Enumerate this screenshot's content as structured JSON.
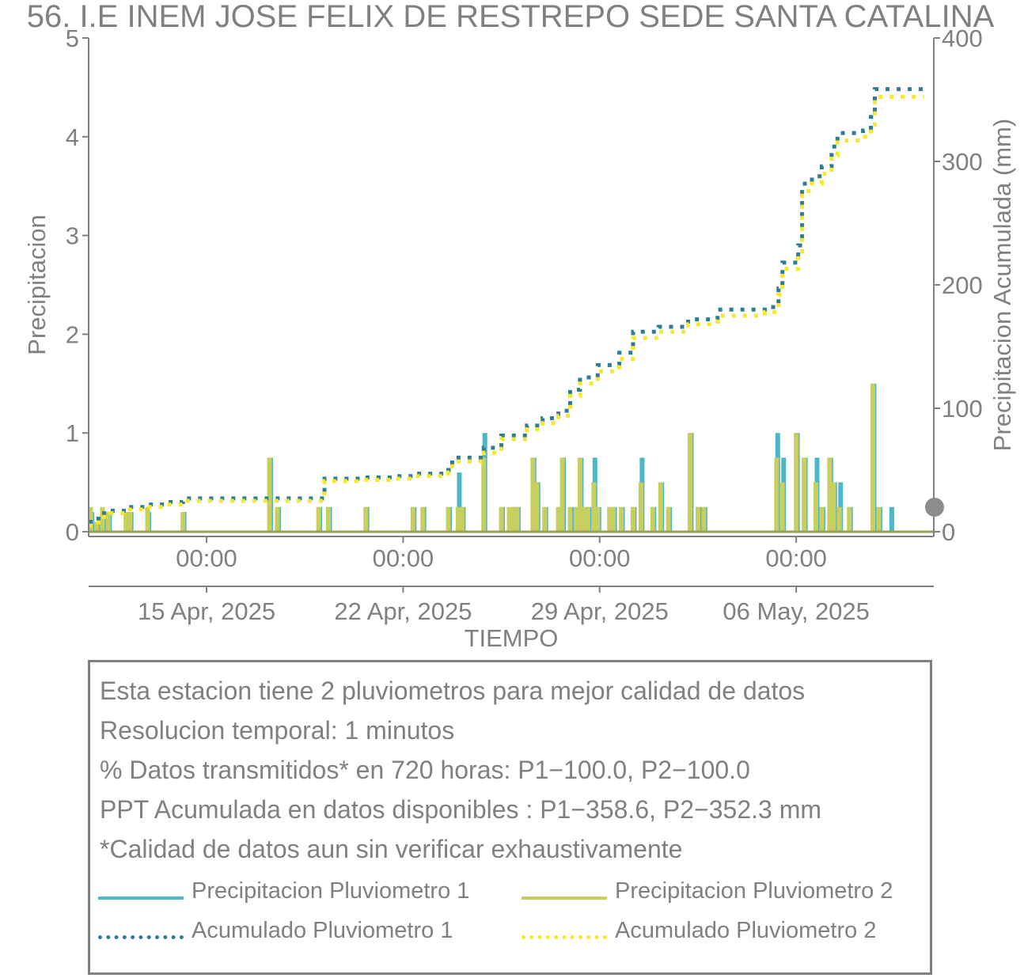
{
  "chart_data": {
    "type": "bar",
    "title": "56. I.E INEM JOSE FELIX DE RESTREPO SEDE SANTA CATALINA",
    "xlabel": "TIEMPO",
    "ylabel": "Precipitacion",
    "ylabel_right": "Precipitacion Acumulada (mm)",
    "ylim": [
      0,
      5
    ],
    "ylim_right": [
      0,
      400
    ],
    "yticks": [
      "0",
      "1",
      "2",
      "3",
      "4",
      "5"
    ],
    "yticks_right": [
      "0",
      "100",
      "200",
      "300",
      "400"
    ],
    "x_range_days": [
      10.5,
      53.5
    ],
    "xticks_time": [
      {
        "day": 16.5,
        "label": "00:00"
      },
      {
        "day": 26.5,
        "label": "00:00"
      },
      {
        "day": 36.5,
        "label": "00:00"
      },
      {
        "day": 46.5,
        "label": "00:00"
      }
    ],
    "xticks_date": [
      {
        "day": 16.5,
        "label": "15 Apr, 2025"
      },
      {
        "day": 26.5,
        "label": "22 Apr, 2025"
      },
      {
        "day": 36.5,
        "label": "29 Apr, 2025"
      },
      {
        "day": 46.5,
        "label": "06 May, 2025"
      }
    ],
    "colors": {
      "p1": "#4bb8c8",
      "p2": "#c8cf5f",
      "a1": "#2e7d96",
      "a2": "#f7e92a"
    },
    "series": [
      {
        "name": "Precipitacion Pluviometro 1",
        "kind": "bar",
        "x": [
          10.6,
          10.9,
          11.2,
          11.5,
          12.4,
          12.6,
          13.5,
          15.3,
          19.7,
          20.1,
          22.2,
          22.7,
          24.6,
          27.0,
          27.5,
          28.8,
          29.3,
          29.5,
          30.6,
          31.5,
          31.9,
          32.1,
          32.3,
          33.1,
          33.3,
          33.7,
          34.4,
          34.6,
          35.0,
          35.3,
          35.5,
          35.7,
          35.9,
          36.2,
          36.4,
          37.0,
          37.2,
          37.6,
          38.2,
          38.6,
          39.2,
          39.6,
          40.0,
          41.1,
          41.5,
          41.8,
          45.5,
          45.8,
          46.5,
          46.9,
          47.5,
          47.8,
          48.2,
          48.4,
          48.7,
          49.2,
          50.4,
          50.7,
          51.3
        ],
        "values": [
          0.2,
          0.1,
          0.2,
          0.2,
          0.2,
          0.2,
          0.2,
          0.2,
          0.75,
          0.25,
          0.25,
          0.25,
          0.25,
          0.25,
          0.25,
          0.25,
          0.6,
          0.25,
          1.0,
          0.25,
          0.2,
          0.25,
          0.25,
          0.75,
          0.5,
          0.25,
          0.25,
          0.75,
          0.25,
          0.25,
          0.75,
          0.25,
          0.25,
          0.75,
          0.25,
          0.25,
          0.25,
          0.25,
          0.25,
          0.75,
          0.25,
          0.5,
          0.25,
          1.0,
          0.25,
          0.25,
          1.0,
          0.75,
          1.0,
          0.75,
          0.75,
          0.25,
          0.75,
          0.5,
          0.5,
          0.25,
          1.5,
          0.25,
          0.25
        ]
      },
      {
        "name": "Precipitacion Pluviometro 2",
        "kind": "bar",
        "x": [
          10.6,
          10.9,
          11.2,
          11.5,
          12.4,
          12.6,
          13.5,
          15.3,
          19.7,
          20.1,
          22.2,
          22.7,
          24.6,
          27.0,
          27.5,
          28.8,
          29.3,
          29.5,
          30.6,
          31.5,
          31.9,
          32.1,
          32.3,
          33.1,
          33.3,
          33.7,
          34.4,
          34.6,
          35.0,
          35.3,
          35.5,
          35.7,
          35.9,
          36.2,
          36.4,
          37.0,
          37.2,
          37.6,
          38.2,
          38.6,
          39.2,
          39.6,
          40.0,
          41.1,
          41.5,
          41.8,
          45.5,
          45.8,
          46.5,
          46.9,
          47.5,
          47.8,
          48.2,
          48.4,
          48.7,
          49.2,
          50.4,
          50.7,
          51.3
        ],
        "values": [
          0.25,
          0.1,
          0.25,
          0.2,
          0.2,
          0.2,
          0.25,
          0.2,
          0.75,
          0.25,
          0.25,
          0.25,
          0.25,
          0.25,
          0.25,
          0.25,
          0.25,
          0.25,
          0.75,
          0.25,
          0.25,
          0.25,
          0.25,
          0.75,
          0.5,
          0.25,
          0.25,
          0.75,
          0.25,
          0.25,
          0.75,
          0.25,
          0.25,
          0.5,
          0.25,
          0.25,
          0.25,
          0.25,
          0.25,
          0.5,
          0.25,
          0.5,
          0.25,
          1.0,
          0.25,
          0.25,
          0.75,
          0.5,
          1.0,
          0.75,
          0.5,
          0.25,
          0.75,
          0.5,
          0.25,
          0.25,
          1.5,
          0.25,
          0.0
        ]
      },
      {
        "name": "Acumulado Pluviometro 1",
        "kind": "line",
        "x": [
          10.5,
          11.0,
          11.6,
          12.5,
          13.4,
          14.5,
          15.3,
          22.5,
          24.5,
          26.0,
          27.0,
          28.8,
          29.0,
          30.6,
          31.5,
          32.8,
          33.6,
          34.4,
          35.0,
          35.5,
          36.4,
          37.5,
          38.2,
          39.5,
          41.0,
          42.5,
          44.9,
          45.6,
          45.8,
          46.3,
          46.6,
          46.8,
          47.3,
          47.8,
          48.3,
          48.6,
          49.9,
          50.3,
          50.5,
          53.0
        ],
        "values": [
          8,
          15,
          17,
          20,
          22,
          24,
          27,
          43,
          44,
          45,
          47,
          50,
          60,
          68,
          78,
          86,
          92,
          98,
          115,
          125,
          135,
          145,
          162,
          166,
          172,
          180,
          182,
          197,
          218,
          218,
          232,
          282,
          288,
          296,
          312,
          323,
          325,
          336,
          358.6,
          358.6
        ]
      },
      {
        "name": "Acumulado Pluviometro 2",
        "kind": "line",
        "x": [
          10.5,
          11.0,
          11.6,
          12.5,
          13.4,
          14.5,
          15.3,
          22.5,
          24.5,
          26.0,
          27.0,
          28.8,
          29.0,
          30.6,
          31.5,
          32.8,
          33.6,
          34.4,
          35.0,
          35.5,
          36.4,
          37.5,
          38.2,
          39.5,
          41.0,
          42.5,
          44.9,
          45.6,
          45.8,
          46.3,
          46.6,
          46.8,
          47.3,
          47.8,
          48.3,
          48.6,
          49.9,
          50.3,
          50.5,
          53.0
        ],
        "values": [
          5,
          12,
          15,
          18,
          20,
          22,
          25,
          41,
          42,
          43,
          45,
          48,
          57,
          64,
          75,
          83,
          88,
          94,
          110,
          120,
          130,
          140,
          157,
          162,
          168,
          175,
          178,
          192,
          213,
          213,
          227,
          276,
          282,
          290,
          305,
          317,
          320,
          330,
          352.3,
          352.3
        ]
      }
    ]
  },
  "info": {
    "line1": "Esta estacion tiene 2 pluviometros para mejor calidad de datos",
    "line2": "Resolucion temporal: 1 minutos",
    "line3": "% Datos transmitidos* en 720 horas: P1−100.0, P2−100.0",
    "line4": "PPT Acumulada en datos disponibles : P1−358.6, P2−352.3 mm",
    "line5": "*Calidad de datos aun sin verificar exhaustivamente"
  },
  "legend": {
    "p1": "Precipitacion Pluviometro 1",
    "p2": "Precipitacion Pluviometro 2",
    "a1": "Acumulado Pluviometro 1",
    "a2": "Acumulado Pluviometro 2"
  }
}
